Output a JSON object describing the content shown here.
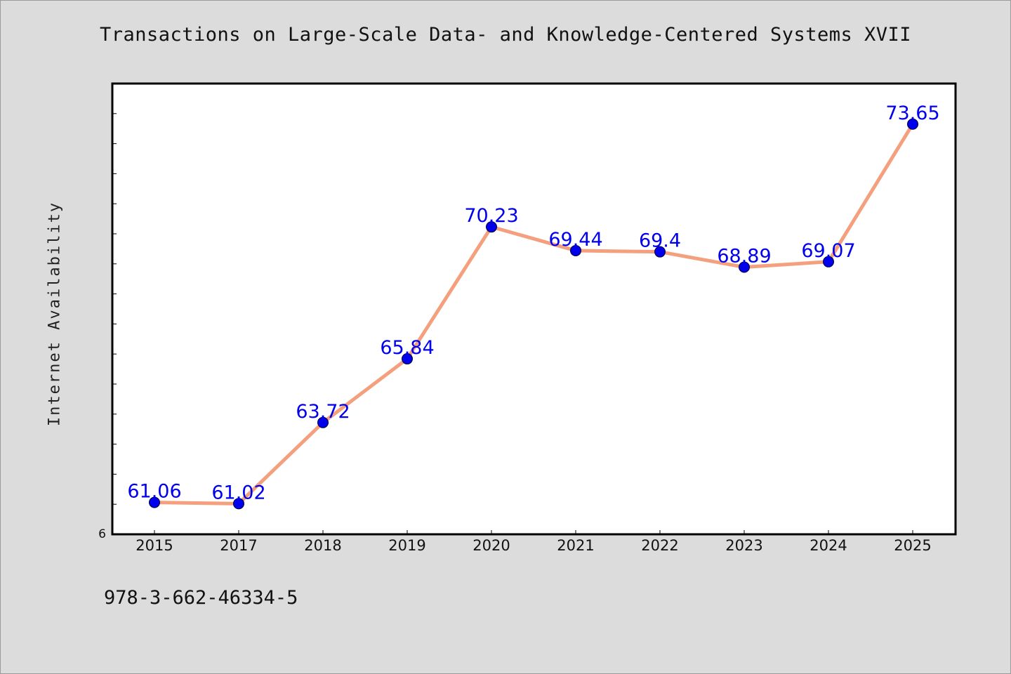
{
  "chart_data": {
    "type": "line",
    "title": "Transactions on Large-Scale Data- and Knowledge-Centered Systems XVII",
    "xlabel": "",
    "ylabel": "Internet Availability",
    "categories": [
      "2015",
      "2017",
      "2018",
      "2019",
      "2020",
      "2021",
      "2022",
      "2023",
      "2024",
      "2025"
    ],
    "series": [
      {
        "values": [
          61.06,
          61.02,
          63.72,
          65.84,
          70.23,
          69.44,
          69.4,
          68.89,
          69.07,
          73.65
        ],
        "labels": [
          "61.06",
          "61.02",
          "63.72",
          "65.84",
          "70.23",
          "69.44",
          "69.4",
          "68.89",
          "69.07",
          "73.65"
        ]
      }
    ],
    "ylim": [
      60,
      75
    ],
    "yticks_minor_step": 1,
    "ytick_labels_visible": [
      "6"
    ],
    "grid": false,
    "legend": "none",
    "colors": {
      "line": "#f4a07e",
      "marker": "#0000ee",
      "marker_edge": "#000033",
      "data_label": "#0000ee",
      "background": "#dcdcdc",
      "plot_bg": "#ffffff"
    }
  },
  "footer": {
    "isbn": "978-3-662-46334-5"
  }
}
